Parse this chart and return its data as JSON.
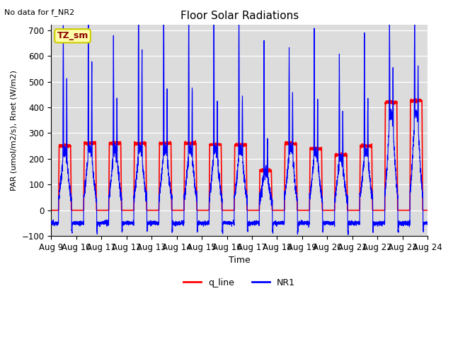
{
  "title": "Floor Solar Radiations",
  "xlabel": "Time",
  "ylabel": "PAR (umol/m2/s), Rnet (W/m2)",
  "annotation_text": "No data for f_NR2",
  "legend_label_box": "TZ_sm",
  "legend_labels": [
    "q_line",
    "NR1"
  ],
  "legend_colors": [
    "#ff0000",
    "#0000ff"
  ],
  "ylim": [
    -100,
    720
  ],
  "yticks": [
    -100,
    0,
    100,
    200,
    300,
    400,
    500,
    600,
    700
  ],
  "xtick_labels": [
    "Aug 9",
    "Aug 10",
    "Aug 11",
    "Aug 12",
    "Aug 13",
    "Aug 14",
    "Aug 15",
    "Aug 16",
    "Aug 17",
    "Aug 18",
    "Aug 19",
    "Aug 20",
    "Aug 21",
    "Aug 22",
    "Aug 23",
    "Aug 24"
  ],
  "bg_color": "#dcdcdc",
  "fig_bg_color": "#ffffff",
  "box_facecolor": "#ffffaa",
  "box_edgecolor": "#cccc00",
  "box_text_color": "#8b0000"
}
